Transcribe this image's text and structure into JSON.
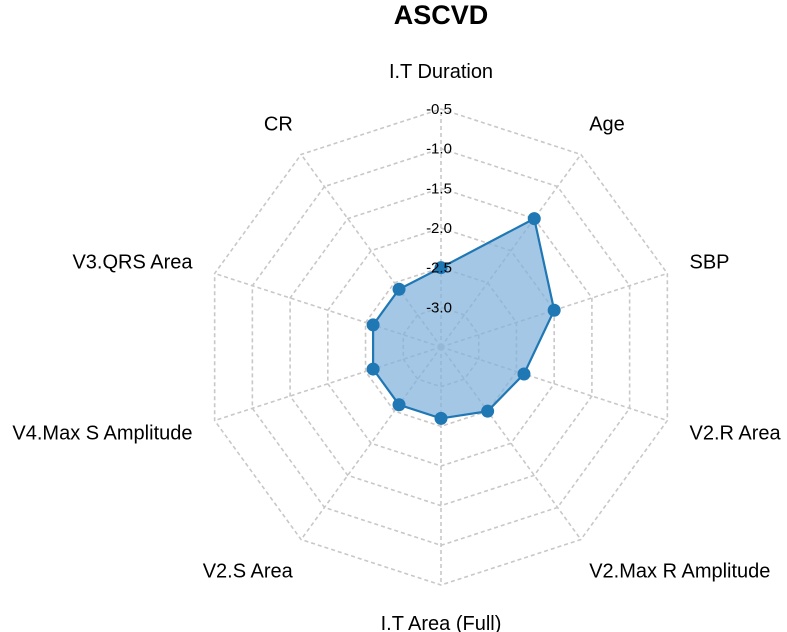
{
  "chart_data": {
    "type": "radar",
    "title": "ASCVD",
    "axes": [
      "I.T Duration",
      "Age",
      "SBP",
      "V2.R Area",
      "V2.Max R Amplitude",
      "I.T Area (Full)",
      "V2.S Area",
      "V4.Max S Amplitude",
      "V3.QRS Area",
      "CR"
    ],
    "tick_labels": [
      "-0.5",
      "-1.0",
      "-1.5",
      "-2.0",
      "-2.5",
      "-3.0"
    ],
    "radial_range": [
      -3.5,
      -0.5
    ],
    "radial_scale": "inverted",
    "grid": true,
    "series": [
      {
        "values": [
          -2.5,
          -1.5,
          -2.0,
          -2.4,
          -2.5,
          -2.6,
          -2.6,
          -2.6,
          -2.6,
          -2.6
        ],
        "color": "#1f77b4",
        "fill_color": "#7fb2da"
      }
    ]
  }
}
